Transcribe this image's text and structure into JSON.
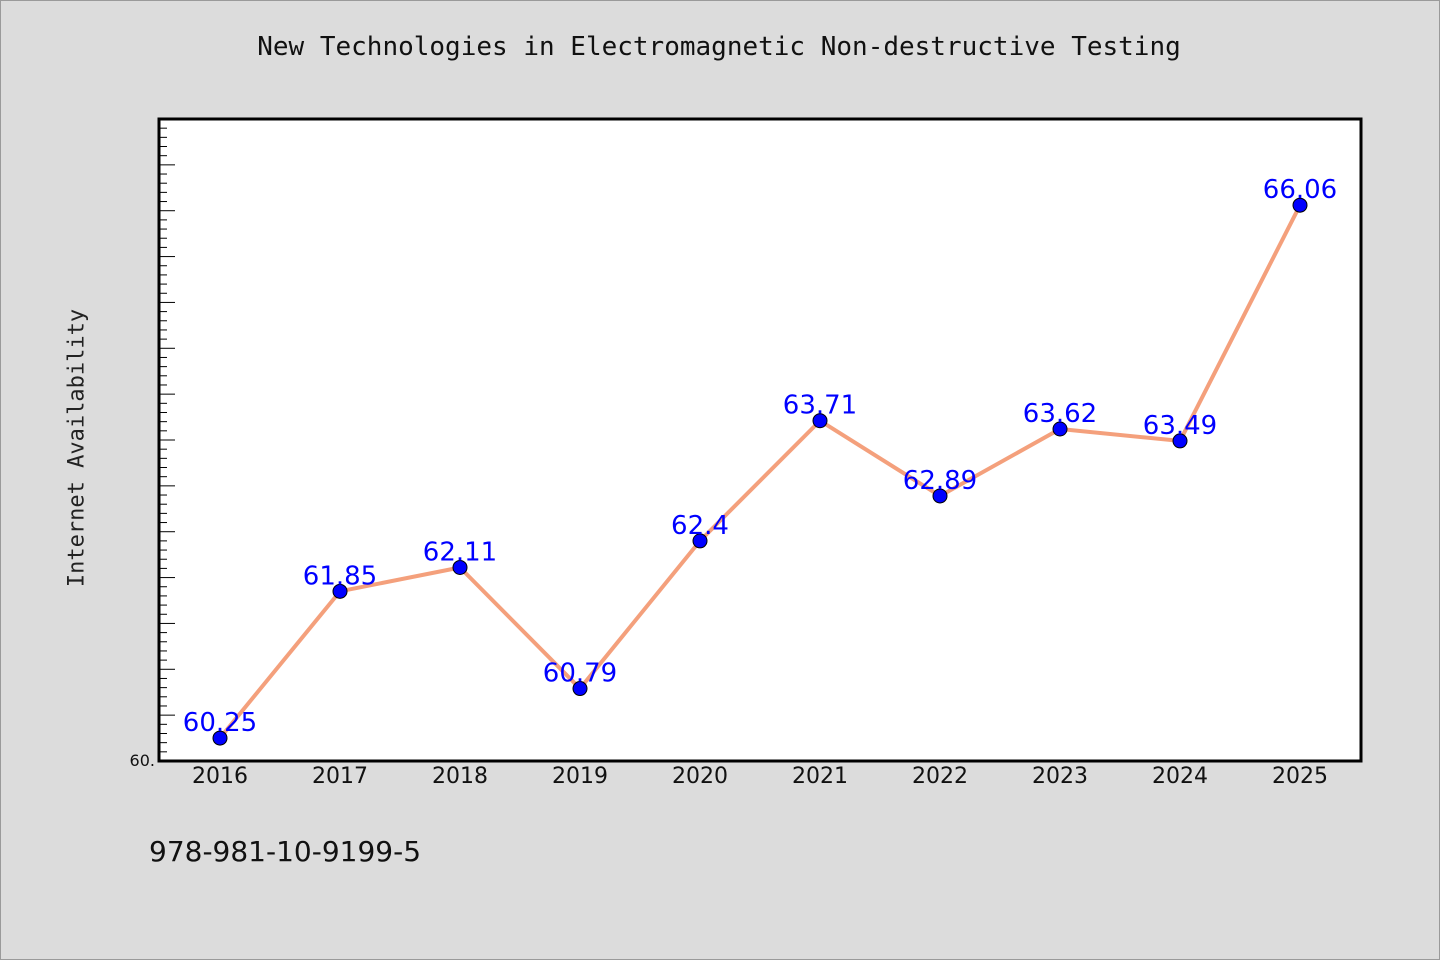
{
  "chart_data": {
    "type": "line",
    "title": "New Technologies in Electromagnetic Non-destructive Testing",
    "ylabel": "Internet Availability",
    "xlabel": "",
    "x": [
      "2016",
      "2017",
      "2018",
      "2019",
      "2020",
      "2021",
      "2022",
      "2023",
      "2024",
      "2025"
    ],
    "series": [
      {
        "values": [
          60.25,
          61.85,
          62.11,
          60.79,
          62.4,
          63.71,
          62.89,
          63.62,
          63.49,
          66.06
        ],
        "labels": [
          "60.25",
          "61.85",
          "62.11",
          "60.79",
          "62.4",
          "63.71",
          "62.89",
          "63.62",
          "63.49",
          "66.06"
        ]
      }
    ],
    "ylim": [
      60.0,
      67.0
    ],
    "y_tick_label": "60.",
    "grid": false,
    "legend": "none",
    "colors": {
      "line": "#f4a07c",
      "marker": "#0000ff",
      "label": "#0000ff",
      "plot_background": "#ffffff",
      "page_background": "#dcdcdc"
    }
  },
  "footer": {
    "isbn": "978-981-10-9199-5"
  }
}
